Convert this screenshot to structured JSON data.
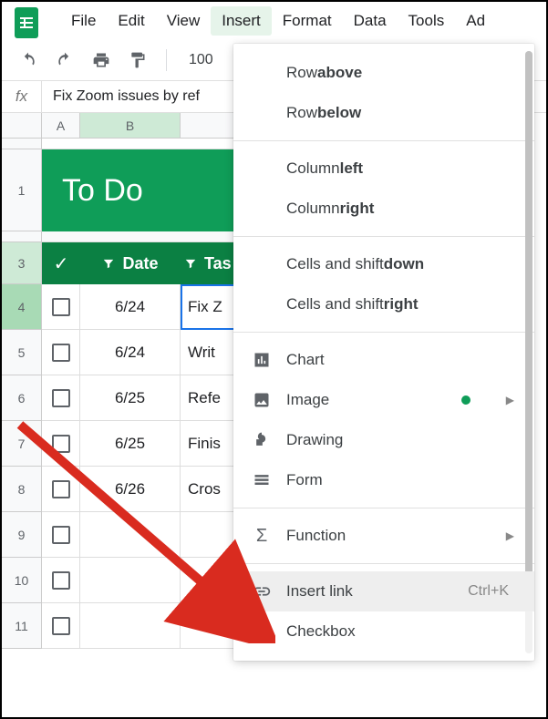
{
  "menubar": {
    "items": [
      "File",
      "Edit",
      "View",
      "Insert",
      "Format",
      "Data",
      "Tools",
      "Ad"
    ],
    "active_index": 3
  },
  "toolbar": {
    "zoom": "100"
  },
  "formula_bar": {
    "value": "Fix Zoom issues by ref"
  },
  "columns": [
    "A",
    "B"
  ],
  "banner_title": "To Do",
  "table_header": {
    "date": "Date",
    "task": "Tas"
  },
  "rows": [
    {
      "n": "4",
      "date": "6/24",
      "task": "Fix Z",
      "selected": true
    },
    {
      "n": "5",
      "date": "6/24",
      "task": "Writ"
    },
    {
      "n": "6",
      "date": "6/25",
      "task": "Refe"
    },
    {
      "n": "7",
      "date": "6/25",
      "task": "Finis"
    },
    {
      "n": "8",
      "date": "6/26",
      "task": "Cros"
    },
    {
      "n": "9",
      "date": "",
      "task": ""
    },
    {
      "n": "10",
      "date": "",
      "task": ""
    },
    {
      "n": "11",
      "date": "",
      "task": ""
    }
  ],
  "dropdown": {
    "row_above": {
      "pre": "Row ",
      "b": "above"
    },
    "row_below": {
      "pre": "Row ",
      "b": "below"
    },
    "col_left": {
      "pre": "Column ",
      "b": "left"
    },
    "col_right": {
      "pre": "Column ",
      "b": "right"
    },
    "cells_down": {
      "pre": "Cells and shift ",
      "b": "down"
    },
    "cells_right": {
      "pre": "Cells and shift ",
      "b": "right"
    },
    "chart": "Chart",
    "image": "Image",
    "drawing": "Drawing",
    "form": "Form",
    "function": "Function",
    "insert_link": "Insert link",
    "insert_link_shortcut": "Ctrl+K",
    "checkbox": "Checkbox"
  },
  "colors": {
    "brand_green": "#0f9d58",
    "header_green": "#0b8043",
    "selection_blue": "#1a73e8",
    "arrow_red": "#d92b1f"
  }
}
